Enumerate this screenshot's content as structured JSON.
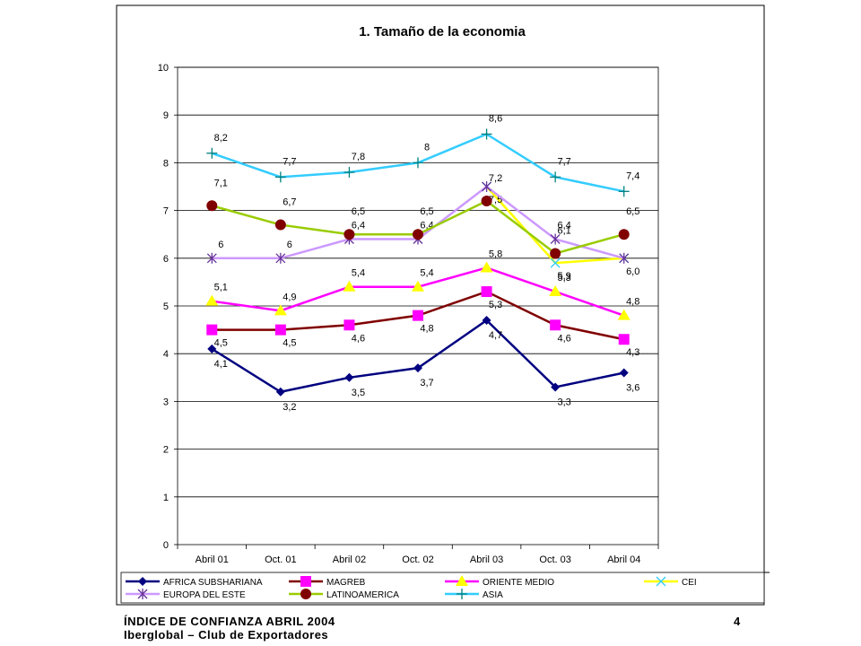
{
  "chart_data": {
    "type": "line",
    "title": "1. Tamaño de la economia",
    "xlabel": "",
    "ylabel": "",
    "categories": [
      "Abril 01",
      "Oct. 01",
      "Abril 02",
      "Oct. 02",
      "Abril 03",
      "Oct. 03",
      "Abril 04"
    ],
    "ylim": [
      0,
      10
    ],
    "yticks": [
      "0",
      "1",
      "2",
      "3",
      "4",
      "5",
      "6",
      "7",
      "8",
      "9",
      "10"
    ],
    "grid": true,
    "legend_position": "bottom",
    "series": [
      {
        "name": "AFRICA SUBSHARIANA",
        "color": "#000080",
        "marker": "diamond",
        "values": [
          4.1,
          3.2,
          3.5,
          3.7,
          4.7,
          3.3,
          3.6
        ],
        "labels": [
          "4,1",
          "3,2",
          "3,5",
          "3,7",
          "4,7",
          "3,3",
          "3,6"
        ]
      },
      {
        "name": "MAGREB",
        "color": "#800000",
        "marker": "square",
        "values": [
          4.5,
          4.5,
          4.6,
          4.8,
          5.3,
          4.6,
          4.3
        ],
        "labels": [
          "4,5",
          "4,5",
          "4,6",
          "4,8",
          "5,3",
          "4,6",
          "4,3"
        ]
      },
      {
        "name": "ORIENTE MEDIO",
        "color": "#ff00ff",
        "marker": "triangle",
        "values": [
          5.1,
          4.9,
          5.4,
          5.4,
          5.8,
          5.3,
          4.8
        ],
        "labels": [
          "5,1",
          "4,9",
          "5,4",
          "5,4",
          "5,8",
          "5,3",
          "4,8"
        ]
      },
      {
        "name": "CEI",
        "color": "#ffff00",
        "marker": "x",
        "values": [
          null,
          null,
          null,
          null,
          7.5,
          5.9,
          6.0
        ],
        "labels": [
          "",
          "",
          "",
          "",
          "7,5",
          "5,9",
          "6,0"
        ]
      },
      {
        "name": "EUROPA DEL ESTE",
        "color": "#cc99ff",
        "marker": "asterisk",
        "values": [
          6,
          6,
          6.4,
          6.4,
          7.5,
          6.4,
          6.0
        ],
        "labels": [
          "6",
          "6",
          "6,4",
          "6,4",
          "",
          "6,4",
          ""
        ]
      },
      {
        "name": "LATINOAMERICA",
        "color": "#99cc00",
        "marker": "circle",
        "values": [
          7.1,
          6.7,
          6.5,
          6.5,
          7.2,
          6.1,
          6.5
        ],
        "labels": [
          "7,1",
          "6,7",
          "6,5",
          "6,5",
          "7,2",
          "6,1",
          "6,5"
        ]
      },
      {
        "name": "ASIA",
        "color": "#33ccff",
        "marker": "plus",
        "values": [
          8.2,
          7.7,
          7.8,
          8,
          8.6,
          7.7,
          7.4
        ],
        "labels": [
          "8,2",
          "7,7",
          "7,8",
          "8",
          "8,6",
          "7,7",
          "7,4"
        ]
      }
    ]
  },
  "footer": {
    "line1": "ÍNDICE DE CONFIANZA ABRIL 2004",
    "line2": "Iberglobal – Club de Exportadores",
    "page_number": "4"
  }
}
